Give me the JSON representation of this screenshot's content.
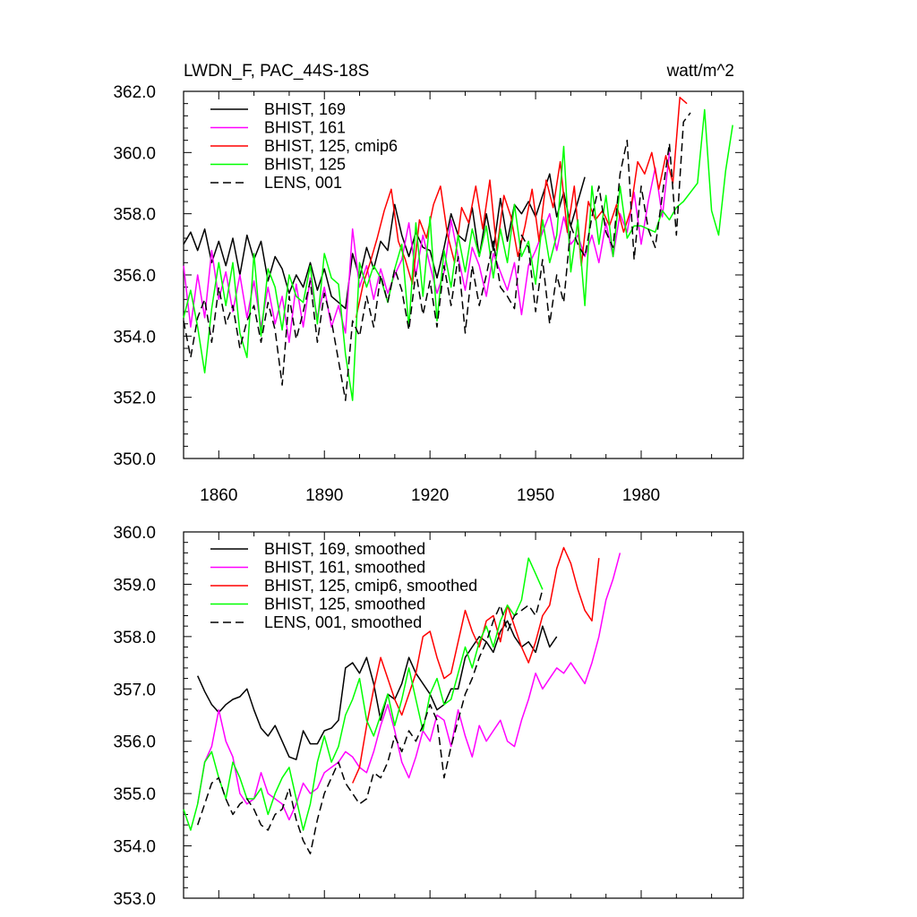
{
  "chart_data": [
    {
      "type": "line",
      "title_left": "LWDN_F, PAC_44S-18S",
      "title_right": "watt/m^2",
      "xlabel": "",
      "ylabel": "",
      "xlim": [
        1850,
        2009
      ],
      "ylim": [
        350,
        362
      ],
      "yticks": [
        350,
        352,
        354,
        356,
        358,
        360,
        362
      ],
      "ytick_labels": [
        "350.0",
        "352.0",
        "354.0",
        "356.0",
        "358.0",
        "360.0",
        "362.0"
      ],
      "xticks": [
        1860,
        1890,
        1920,
        1950,
        1980
      ],
      "xtick_labels": [
        "1860",
        "1890",
        "1920",
        "1950",
        "1980"
      ],
      "legend_position": "top-left",
      "series": [
        {
          "name": "BHIST, 169",
          "color": "#000000",
          "dash": "solid",
          "x_start": 1850,
          "x_step": 2,
          "values": [
            357.0,
            357.4,
            356.8,
            357.5,
            356.4,
            357.1,
            356.3,
            357.2,
            356.0,
            357.3,
            356.5,
            357.1,
            355.8,
            356.6,
            356.2,
            355.4,
            356.0,
            355.6,
            356.4,
            355.5,
            356.2,
            355.3,
            355.1,
            354.9,
            356.7,
            355.9,
            356.9,
            356.2,
            357.1,
            356.8,
            358.3,
            357.3,
            356.6,
            357.4,
            356.9,
            356.8,
            355.9,
            356.9,
            358.0,
            357.3,
            357.1,
            358.2,
            356.6,
            358.0,
            356.8,
            358.5,
            357.1,
            358.3,
            358.0,
            358.4,
            357.9,
            358.6,
            359.3,
            357.9,
            358.7,
            357.6,
            358.4,
            359.2
          ]
        },
        {
          "name": "BHIST, 161",
          "color": "#ff00ff",
          "dash": "solid",
          "x_start": 1850,
          "x_step": 2,
          "values": [
            356.3,
            354.3,
            356.0,
            354.6,
            356.8,
            355.2,
            356.1,
            354.8,
            356.0,
            354.6,
            355.8,
            354.3,
            355.6,
            354.4,
            355.3,
            353.8,
            355.7,
            354.3,
            355.9,
            354.6,
            355.6,
            354.3,
            355.0,
            354.1,
            357.5,
            355.6,
            356.3,
            355.2,
            356.2,
            355.4,
            356.0,
            356.5,
            357.7,
            356.0,
            357.3,
            356.3,
            355.4,
            356.1,
            357.8,
            356.6,
            355.5,
            356.9,
            356.3,
            355.3,
            356.7,
            356.1,
            355.5,
            356.4,
            354.7,
            356.3,
            356.8,
            357.4,
            358.0,
            356.8,
            357.9,
            357.0,
            357.3,
            356.6,
            357.3,
            356.4,
            357.7,
            356.6,
            358.0,
            357.4,
            358.7,
            357.0,
            358.4,
            359.5,
            357.9,
            360.0
          ]
        },
        {
          "name": "BHIST, 125, cmip6",
          "color": "#ff0000",
          "dash": "solid",
          "x_start": 1899,
          "x_step": 2,
          "values": [
            354.6,
            355.7,
            356.4,
            357.2,
            358.1,
            358.8,
            357.1,
            356.5,
            355.7,
            357.8,
            357.2,
            358.3,
            358.9,
            357.3,
            356.4,
            358.2,
            357.7,
            358.9,
            357.5,
            359.1,
            356.8,
            358.6,
            357.9,
            356.6,
            357.6,
            358.8,
            357.1,
            359.1,
            358.2,
            359.7,
            357.4,
            358.9,
            356.3,
            358.4,
            357.8,
            358.1,
            357.6,
            358.3,
            357.4,
            358.1,
            359.7,
            359.3,
            360.0,
            358.8,
            359.9,
            359.0,
            361.8,
            361.6
          ]
        },
        {
          "name": "BHIST, 125",
          "color": "#00ff00",
          "dash": "solid",
          "x_start": 1850,
          "x_step": 2,
          "values": [
            354.6,
            355.5,
            354.3,
            352.8,
            354.9,
            356.4,
            355.0,
            356.4,
            354.1,
            353.3,
            356.7,
            354.0,
            356.2,
            355.6,
            354.2,
            356.0,
            355.3,
            355.1,
            356.3,
            354.4,
            356.7,
            355.9,
            355.7,
            353.4,
            351.9,
            356.4,
            355.6,
            356.3,
            355.9,
            355.1,
            356.2,
            357.0,
            354.3,
            357.7,
            355.3,
            357.9,
            354.5,
            356.8,
            355.6,
            357.3,
            356.1,
            357.5,
            356.6,
            357.6,
            355.9,
            357.5,
            356.4,
            358.3,
            356.6,
            357.1,
            355.7,
            357.8,
            356.4,
            357.3,
            360.2,
            356.1,
            357.8,
            355.0,
            358.9,
            357.0,
            358.6,
            356.6,
            358.9,
            357.2,
            357.6,
            357.6,
            357.5,
            357.4,
            358.1,
            357.8,
            358.2,
            358.4,
            358.7,
            359.0,
            361.4,
            358.1,
            357.3,
            359.4,
            360.9
          ]
        },
        {
          "name": "LENS, 001",
          "color": "#000000",
          "dash": "dashed",
          "x_start": 1850,
          "x_step": 2,
          "values": [
            354.5,
            353.3,
            354.6,
            355.2,
            353.8,
            355.6,
            354.4,
            355.0,
            353.6,
            354.5,
            355.0,
            353.8,
            355.1,
            354.2,
            352.4,
            355.3,
            353.9,
            354.8,
            355.8,
            353.8,
            355.4,
            354.5,
            353.2,
            351.9,
            354.5,
            354.0,
            355.3,
            354.3,
            356.0,
            355.1,
            356.2,
            355.5,
            354.2,
            356.1,
            354.7,
            355.8,
            354.3,
            356.3,
            355.0,
            356.6,
            354.1,
            356.3,
            355.0,
            356.0,
            357.1,
            355.6,
            355.3,
            354.9,
            357.3,
            356.9,
            354.8,
            356.5,
            354.4,
            356.0,
            355.1,
            357.6,
            357.0,
            356.6,
            357.9,
            358.9,
            357.4,
            356.9,
            359.3,
            360.4,
            356.5,
            358.9,
            357.5,
            356.9,
            358.6,
            360.3,
            357.3,
            361.0,
            361.3
          ]
        }
      ]
    },
    {
      "type": "line",
      "title_left": "",
      "title_right": "",
      "xlabel": "",
      "ylabel": "",
      "xlim": [
        1850,
        2009
      ],
      "ylim": [
        353,
        360
      ],
      "yticks": [
        353,
        354,
        355,
        356,
        357,
        358,
        359,
        360
      ],
      "ytick_labels": [
        "353.0",
        "354.0",
        "355.0",
        "356.0",
        "357.0",
        "358.0",
        "359.0",
        "360.0"
      ],
      "xticks": [
        1860,
        1890,
        1920,
        1950,
        1980
      ],
      "xtick_labels": [],
      "legend_position": "top-left",
      "series": [
        {
          "name": "BHIST, 169, smoothed",
          "color": "#000000",
          "dash": "solid",
          "x_start": 1854,
          "x_step": 2,
          "values": [
            357.25,
            356.95,
            356.7,
            356.55,
            356.7,
            356.8,
            356.85,
            357.0,
            356.6,
            356.25,
            356.1,
            356.3,
            356.0,
            355.7,
            355.65,
            356.2,
            355.95,
            355.95,
            356.2,
            356.25,
            356.4,
            357.4,
            357.5,
            357.3,
            357.6,
            357.1,
            356.4,
            356.9,
            356.8,
            357.1,
            357.6,
            357.3,
            357.1,
            356.9,
            356.6,
            356.7,
            357.0,
            357.0,
            357.6,
            357.8,
            358.0,
            357.9,
            357.7,
            358.1,
            358.3,
            358.0,
            357.8,
            357.9,
            357.7,
            358.2,
            357.8,
            358.0
          ]
        },
        {
          "name": "BHIST, 161, smoothed",
          "color": "#ff00ff",
          "dash": "solid",
          "x_start": 1854,
          "x_step": 2,
          "values": [
            354.8,
            355.6,
            355.9,
            356.6,
            356.0,
            355.7,
            355.0,
            354.8,
            354.9,
            355.4,
            355.0,
            354.9,
            354.8,
            354.5,
            354.8,
            355.2,
            355.0,
            355.1,
            355.4,
            355.5,
            355.6,
            355.8,
            355.7,
            355.5,
            355.4,
            355.8,
            356.3,
            356.7,
            356.2,
            355.6,
            355.3,
            355.7,
            356.2,
            356.0,
            356.5,
            356.4,
            355.9,
            356.6,
            356.1,
            355.7,
            356.3,
            356.0,
            356.2,
            356.4,
            356.0,
            355.9,
            356.4,
            356.8,
            357.3,
            357.0,
            357.2,
            357.4,
            357.3,
            357.5,
            357.3,
            357.1,
            357.5,
            358.0,
            358.7,
            359.1,
            359.6
          ]
        },
        {
          "name": "BHIST, 125, cmip6, smoothed",
          "color": "#ff0000",
          "dash": "solid",
          "x_start": 1898,
          "x_step": 2,
          "values": [
            355.2,
            355.5,
            356.3,
            357.0,
            357.6,
            357.2,
            356.8,
            356.5,
            356.9,
            357.3,
            358.0,
            358.1,
            357.6,
            357.2,
            357.3,
            357.9,
            358.5,
            358.1,
            357.8,
            358.3,
            358.4,
            357.9,
            358.6,
            358.2,
            357.8,
            357.5,
            357.9,
            358.4,
            358.6,
            359.3,
            359.7,
            359.4,
            358.9,
            358.5,
            358.3,
            359.5
          ]
        },
        {
          "name": "BHIST, 125, smoothed",
          "color": "#00ff00",
          "dash": "solid",
          "x_start": 1850,
          "x_step": 2,
          "values": [
            354.7,
            354.3,
            354.8,
            355.6,
            355.8,
            355.3,
            354.9,
            355.6,
            355.3,
            354.9,
            354.9,
            355.1,
            354.6,
            355.0,
            355.3,
            355.5,
            354.9,
            354.3,
            354.8,
            355.6,
            356.1,
            355.6,
            355.9,
            356.5,
            356.8,
            357.2,
            356.4,
            356.1,
            356.5,
            356.9,
            356.3,
            356.8,
            357.4,
            356.8,
            356.2,
            356.9,
            357.2,
            356.7,
            356.8,
            357.3,
            357.8,
            357.4,
            357.9,
            358.2,
            357.8,
            358.3,
            358.6,
            358.4,
            358.7,
            359.5,
            359.2,
            358.9
          ]
        },
        {
          "name": "LENS, 001, smoothed",
          "color": "#000000",
          "dash": "dashed",
          "x_start": 1854,
          "x_step": 2,
          "values": [
            354.4,
            354.8,
            355.2,
            355.3,
            354.9,
            354.6,
            354.8,
            354.9,
            354.7,
            354.4,
            354.3,
            354.6,
            354.7,
            355.1,
            354.5,
            354.1,
            353.85,
            354.5,
            355.0,
            355.3,
            355.6,
            355.2,
            355.0,
            354.8,
            354.9,
            355.4,
            355.3,
            355.6,
            356.1,
            355.8,
            356.2,
            356.0,
            356.3,
            356.7,
            356.4,
            355.3,
            355.9,
            356.4,
            356.9,
            357.2,
            357.6,
            357.9,
            358.3,
            358.6,
            358.1,
            358.4,
            358.5,
            358.6,
            358.4,
            358.9
          ]
        }
      ]
    }
  ]
}
